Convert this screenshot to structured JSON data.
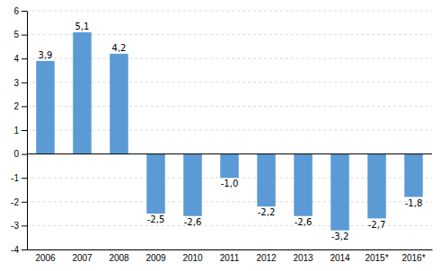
{
  "chart_data": {
    "type": "bar",
    "categories": [
      "2006",
      "2007",
      "2008",
      "2009",
      "2010",
      "2011",
      "2012",
      "2013",
      "2014",
      "2015*",
      "2016*"
    ],
    "values": [
      3.9,
      5.1,
      4.2,
      -2.5,
      -2.6,
      -1.0,
      -2.2,
      -2.6,
      -3.2,
      -2.7,
      -1.8
    ],
    "value_labels": [
      "3,9",
      "5,1",
      "4,2",
      "-2,5",
      "-2,6",
      "-1,0",
      "-2,2",
      "-2,6",
      "-3,2",
      "-2,7",
      "-1,8"
    ],
    "data_labels": true,
    "color": "#5B9BD5",
    "ylim": [
      -4,
      6
    ],
    "yticks": [
      -4,
      -3,
      -2,
      -1,
      0,
      1,
      2,
      3,
      4,
      5,
      6
    ],
    "grid": true
  }
}
